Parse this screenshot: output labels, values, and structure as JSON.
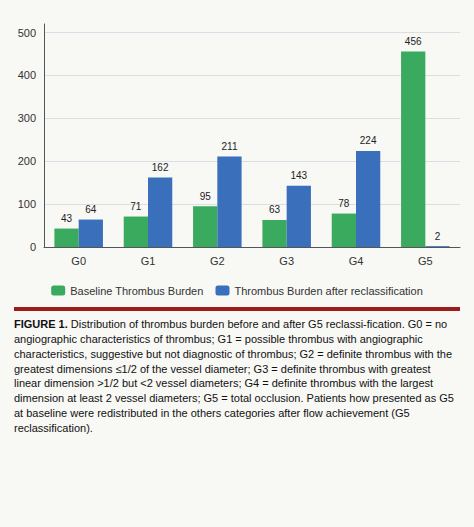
{
  "chart_data": {
    "type": "bar",
    "categories": [
      "G0",
      "G1",
      "G2",
      "G3",
      "G4",
      "G5"
    ],
    "series": [
      {
        "name": "Baseline Thrombus Burden",
        "color": "#3aaa5e",
        "values": [
          43,
          71,
          95,
          63,
          78,
          456
        ]
      },
      {
        "name": "Thrombus Burden after reclassification",
        "color": "#3a6fbb",
        "values": [
          64,
          162,
          211,
          143,
          224,
          2
        ]
      }
    ],
    "ylim": [
      0,
      520
    ],
    "yticks": [
      0,
      100,
      200,
      300,
      400,
      500
    ],
    "grid": true,
    "legend": "bottom",
    "data_labels": true,
    "annotations": [
      "FIGURE 1.",
      "Distribution of thrombus burden before and after G5 reclassi-fication. G0 = no angiographic characteristics of thrombus; G1 = possible thrombus with angiographic characteristics, suggestive but not diagnostic of thrombus; G2 = definite thrombus with the greatest dimensions ≤1/2 of the vessel diameter; G3 = definite thrombus with greatest linear dimension >1/2 but <2 vessel diameters; G4 = definite thrombus with the largest dimension at least 2 vessel diameters; G5 = total occlusion. Patients how presented as G5 at baseline were redistributed in the others categories after flow achievement (G5 reclassification)."
    ]
  }
}
